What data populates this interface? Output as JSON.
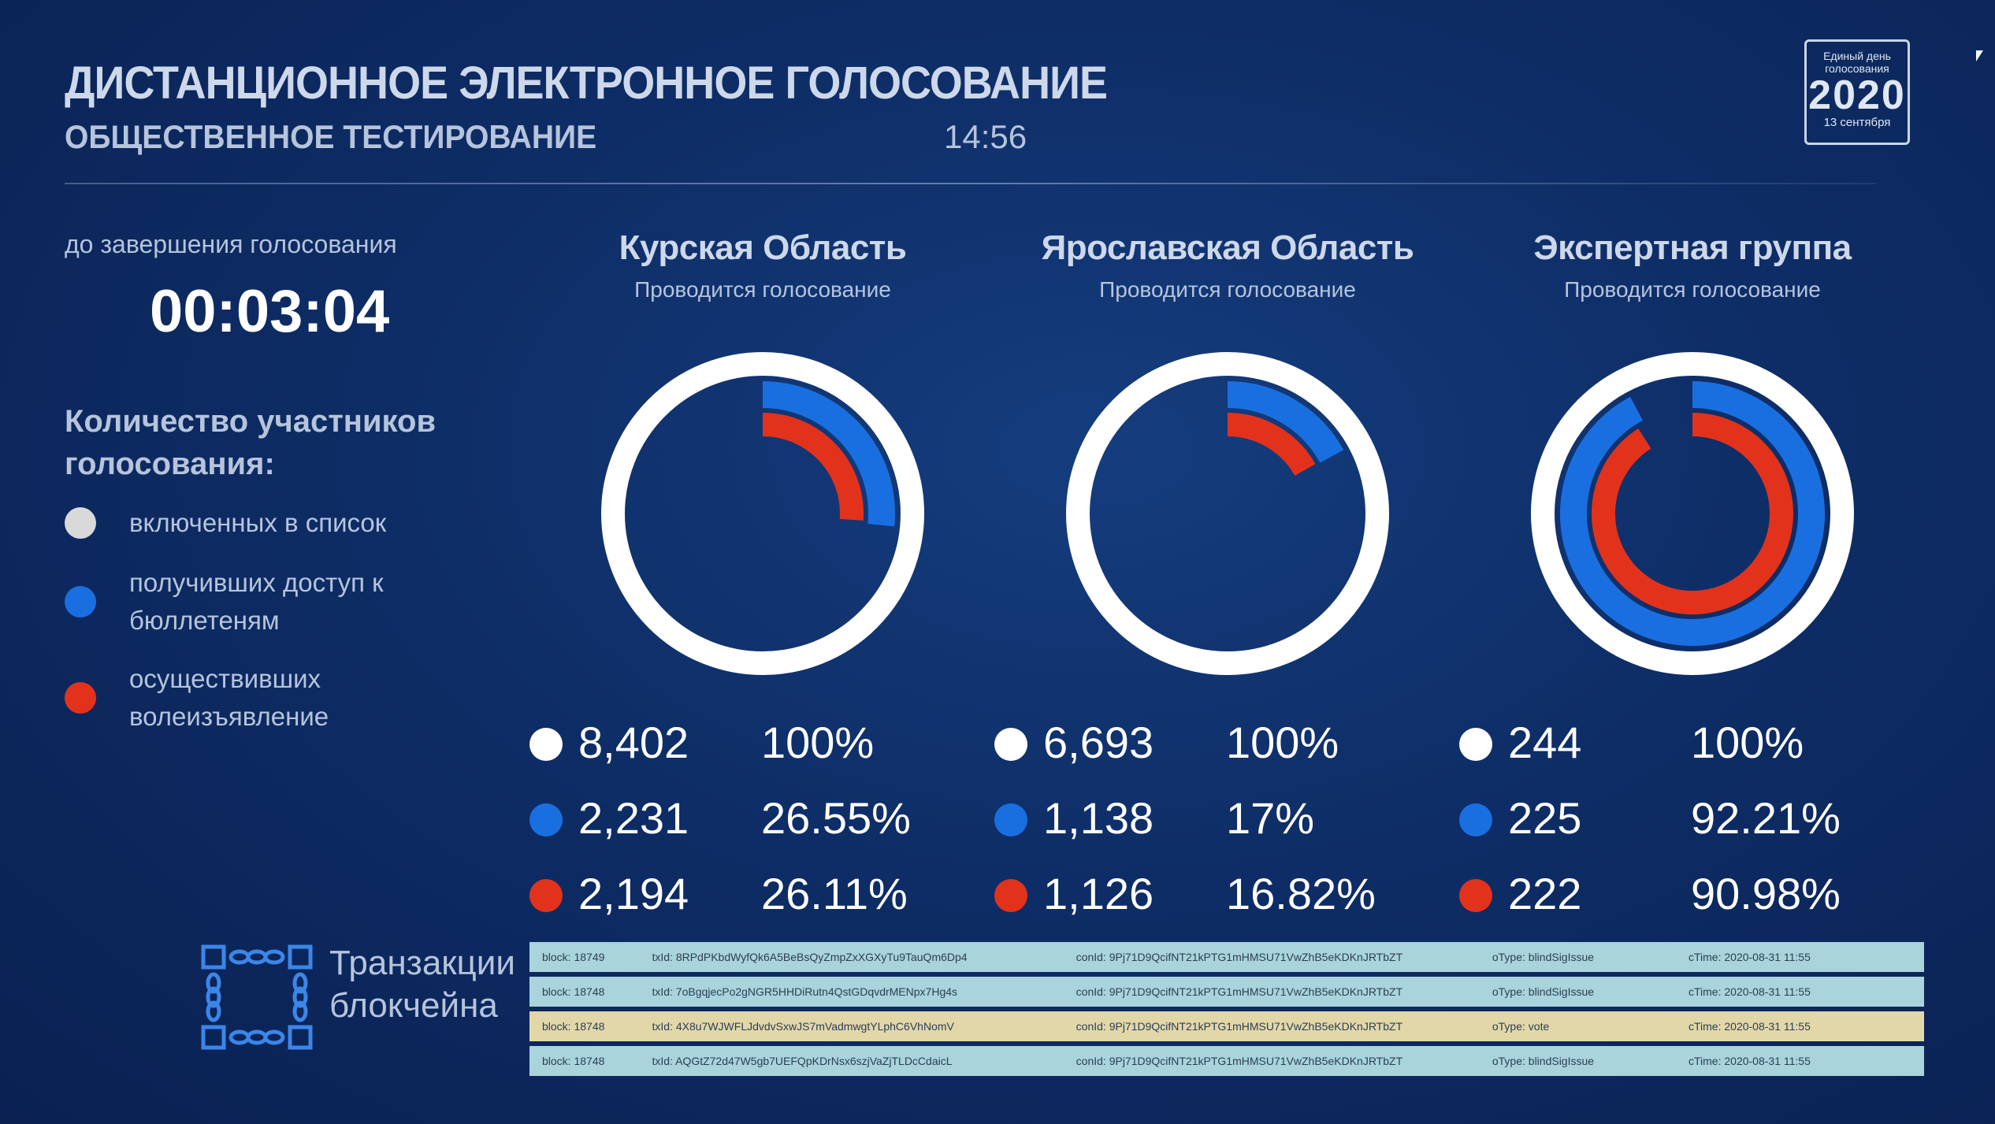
{
  "header": {
    "title": "ДИСТАНЦИОННОЕ ЭЛЕКТРОННОЕ ГОЛОСОВАНИЕ",
    "subtitle": "ОБЩЕСТВЕННОЕ ТЕСТИРОВАНИЕ",
    "time": "14:56"
  },
  "logo": {
    "line1": "Единый день голосования",
    "year": "2020",
    "date": "13 сентября"
  },
  "countdown": {
    "label": "до завершения голосования",
    "value": "00:03:04"
  },
  "legend": {
    "title": "Количество участников голосования:",
    "items": [
      {
        "label": "включенных в список",
        "color": "#d9d9d9"
      },
      {
        "label": "получивших доступ к бюллетеням",
        "color": "#1a6fe0"
      },
      {
        "label": "осуществивших волеизъявление",
        "color": "#e3321c"
      }
    ]
  },
  "regions": [
    {
      "name": "Курская Область",
      "status": "Проводится голосование",
      "stats": [
        {
          "count": "8,402",
          "pct": "100%"
        },
        {
          "count": "2,231",
          "pct": "26.55%"
        },
        {
          "count": "2,194",
          "pct": "26.11%"
        }
      ],
      "access_fraction": 0.2655,
      "voted_fraction": 0.2611
    },
    {
      "name": "Ярославская Область",
      "status": "Проводится голосование",
      "stats": [
        {
          "count": "6,693",
          "pct": "100%"
        },
        {
          "count": "1,138",
          "pct": "17%"
        },
        {
          "count": "1,126",
          "pct": "16.82%"
        }
      ],
      "access_fraction": 0.17,
      "voted_fraction": 0.1682
    },
    {
      "name": "Экспертная группа",
      "status": "Проводится голосование",
      "stats": [
        {
          "count": "244",
          "pct": "100%"
        },
        {
          "count": "225",
          "pct": "92.21%"
        },
        {
          "count": "222",
          "pct": "90.98%"
        }
      ],
      "access_fraction": 0.9221,
      "voted_fraction": 0.9098
    }
  ],
  "colors": {
    "total": "#ffffff",
    "access": "#1a6fe0",
    "voted": "#e3321c",
    "row_blue": "#a9d4dc",
    "row_yellow": "#e2d7a8"
  },
  "blockchain": {
    "label_line1": "Транзакции",
    "label_line2": "блокчейна",
    "icon": "blockchain-chain-icon",
    "transactions": [
      {
        "block": "block: 18749",
        "txid": "txId: 8RPdPKbdWyfQk6A5BeBsQyZmpZxXGXyTu9TauQm6Dp4",
        "conid": "conId: 9Pj71D9QcifNT21kPTG1mHMSU71VwZhB5eKDKnJRTbZT",
        "otype": "oType: blindSigIssue",
        "ctime": "cTime: 2020-08-31 11:55",
        "kind": "blue"
      },
      {
        "block": "block: 18748",
        "txid": "txId: 7oBgqjecPo2gNGR5HHDiRutn4QstGDqvdrMENpx7Hg4s",
        "conid": "conId: 9Pj71D9QcifNT21kPTG1mHMSU71VwZhB5eKDKnJRTbZT",
        "otype": "oType: blindSigIssue",
        "ctime": "cTime: 2020-08-31 11:55",
        "kind": "blue"
      },
      {
        "block": "block: 18748",
        "txid": "txId: 4X8u7WJWFLJdvdvSxwJS7mVadmwgtYLphC6VhNomV",
        "conid": "conId: 9Pj71D9QcifNT21kPTG1mHMSU71VwZhB5eKDKnJRTbZT",
        "otype": "oType: vote",
        "ctime": "cTime: 2020-08-31 11:55",
        "kind": "yellow"
      },
      {
        "block": "block: 18748",
        "txid": "txId: AQGtZ72d47W5gb7UEFQpKDrNsx6szjVaZjTLDcCdaicL",
        "conid": "conId: 9Pj71D9QcifNT21kPTG1mHMSU71VwZhB5eKDKnJRTbZT",
        "otype": "oType: blindSigIssue",
        "ctime": "cTime: 2020-08-31 11:55",
        "kind": "blue"
      }
    ]
  }
}
